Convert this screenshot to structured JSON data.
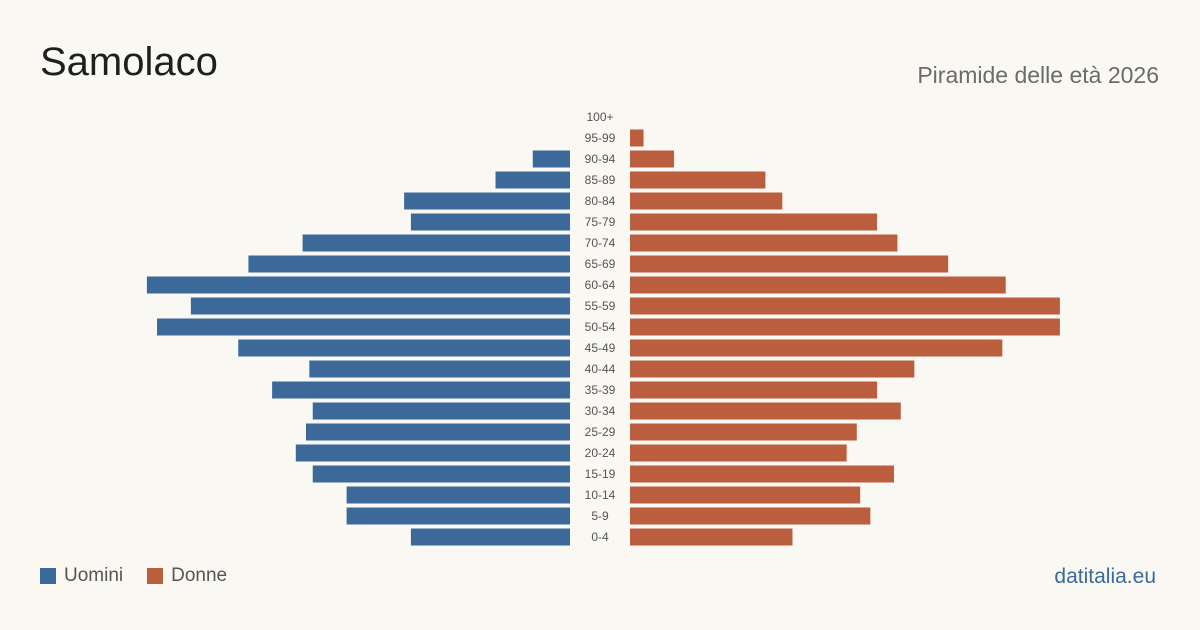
{
  "header": {
    "title": "Samolaco",
    "subtitle": "Piramide delle età 2026"
  },
  "legend": {
    "men_label": "Uomini",
    "women_label": "Donne"
  },
  "brand": "datitalia.eu",
  "colors": {
    "men": "#3b6a9a",
    "women": "#bb5e3e",
    "background": "#faf8f3"
  },
  "chart_data": {
    "type": "bar",
    "orientation": "horizontal-pyramid",
    "categories": [
      "100+",
      "95-99",
      "90-94",
      "85-89",
      "80-84",
      "75-79",
      "70-74",
      "65-69",
      "60-64",
      "55-59",
      "50-54",
      "45-49",
      "40-44",
      "35-39",
      "30-34",
      "25-29",
      "20-24",
      "15-19",
      "10-14",
      "5-9",
      "0-4"
    ],
    "series": [
      {
        "name": "Uomini",
        "values": [
          0,
          0,
          11,
          22,
          49,
          47,
          79,
          95,
          125,
          112,
          122,
          98,
          77,
          88,
          76,
          78,
          81,
          76,
          66,
          66,
          47
        ]
      },
      {
        "name": "Donne",
        "values": [
          0,
          4,
          13,
          40,
          45,
          73,
          79,
          94,
          111,
          127,
          127,
          110,
          84,
          73,
          80,
          67,
          64,
          78,
          68,
          71,
          48
        ]
      }
    ],
    "grid": false,
    "legend_position": "bottom-left"
  }
}
